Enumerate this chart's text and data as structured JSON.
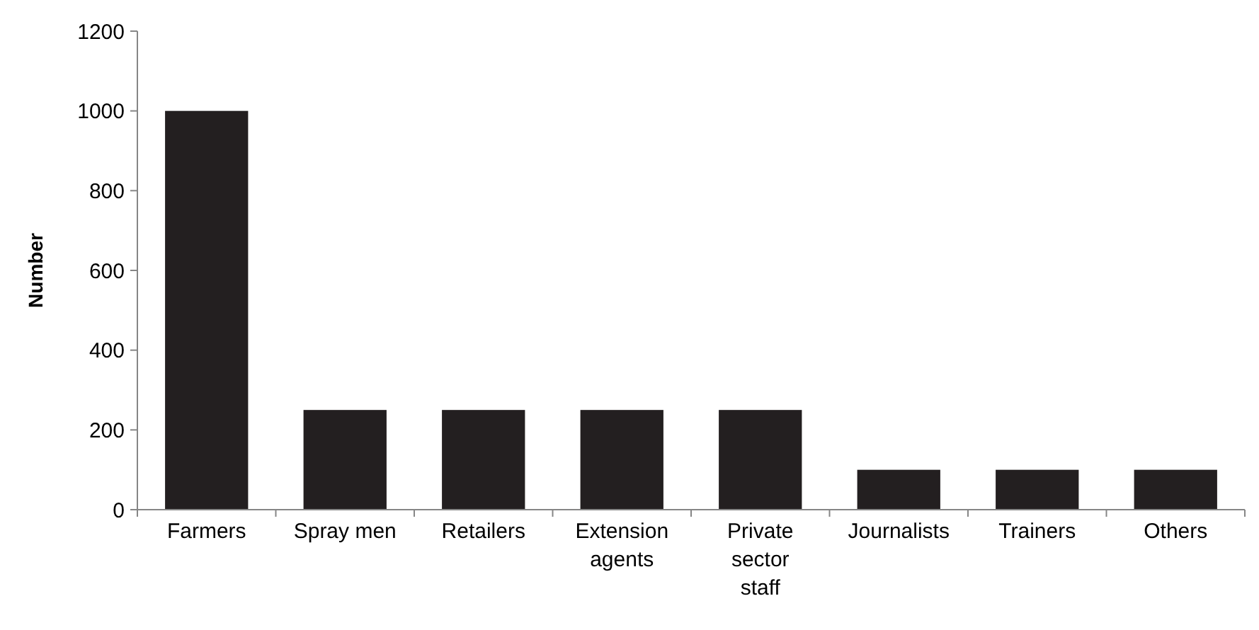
{
  "chart_data": {
    "type": "bar",
    "ylabel": "Number",
    "categories": [
      "Farmers",
      "Spray men",
      "Retailers",
      "Extension agents",
      "Private sector staff",
      "Journalists",
      "Trainers",
      "Others"
    ],
    "values": [
      1000,
      250,
      250,
      250,
      250,
      100,
      100,
      100
    ],
    "color": "#231f20",
    "ylim": [
      0,
      1200
    ],
    "yticks": [
      0,
      200,
      400,
      600,
      800,
      1000,
      1200
    ],
    "grid": false
  }
}
